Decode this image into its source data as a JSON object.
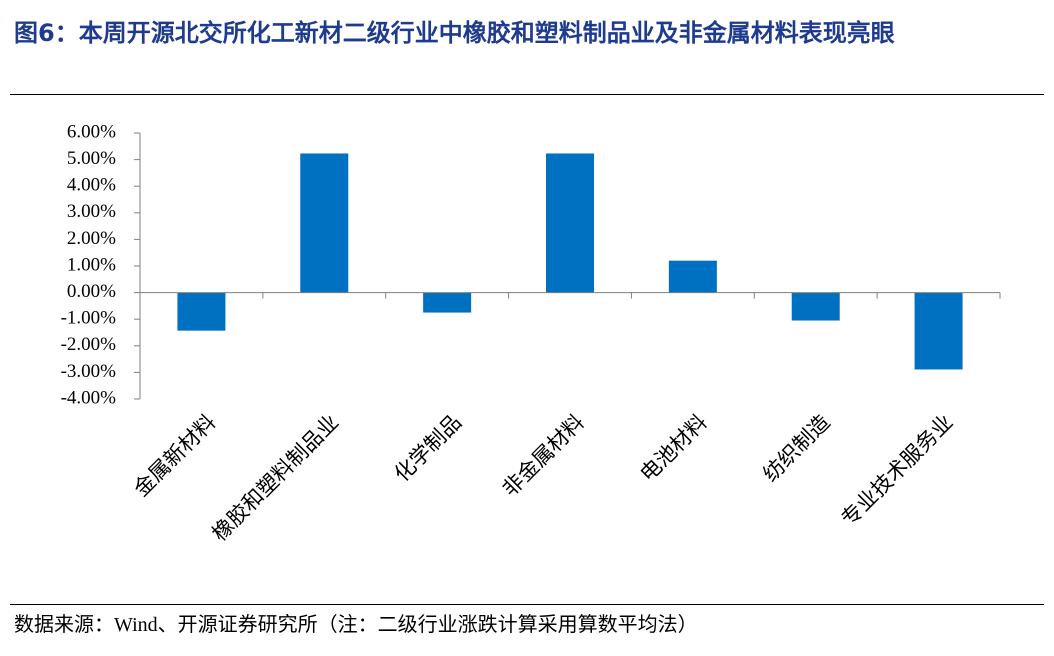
{
  "chart_data": {
    "type": "bar",
    "title": "图6：本周开源北交所化工新材二级行业中橡胶和塑料制品业及非金属材料表现亮眼",
    "categories": [
      "金属新材料",
      "橡胶和塑料制品业",
      "化学制品",
      "非金属材料",
      "电池材料",
      "纺织制造",
      "专业技术服务业"
    ],
    "values": [
      -1.43,
      5.23,
      -0.75,
      5.23,
      1.2,
      -1.05,
      -2.89
    ],
    "color": "#0070c0",
    "ylim": [
      -4,
      6
    ],
    "yticks": [
      {
        "value": -4,
        "label": "-4.00%"
      },
      {
        "value": -3,
        "label": "-3.00%"
      },
      {
        "value": -2,
        "label": "-2.00%"
      },
      {
        "value": -1,
        "label": "-1.00%"
      },
      {
        "value": 0,
        "label": "0.00%"
      },
      {
        "value": 1,
        "label": "1.00%"
      },
      {
        "value": 2,
        "label": "2.00%"
      },
      {
        "value": 3,
        "label": "3.00%"
      },
      {
        "value": 4,
        "label": "4.00%"
      },
      {
        "value": 5,
        "label": "5.00%"
      },
      {
        "value": 6,
        "label": "6.00%"
      }
    ],
    "grid": false,
    "source": "数据来源：Wind、开源证券研究所（注：二级行业涨跌计算采用算数平均法）"
  }
}
